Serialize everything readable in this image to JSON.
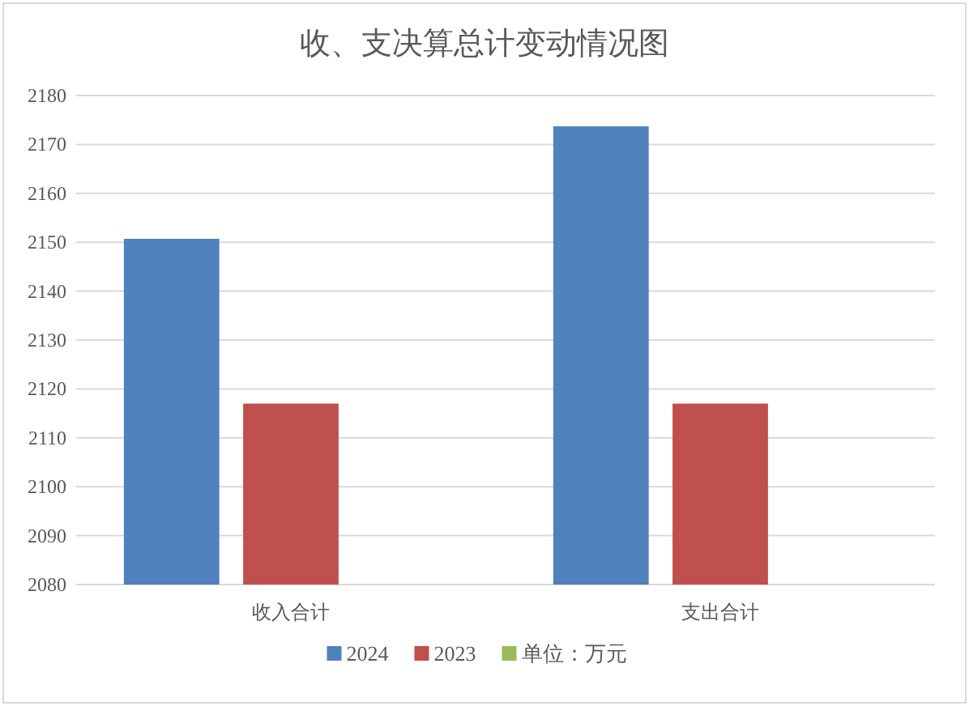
{
  "chart_data": {
    "type": "bar",
    "title": "收、支决算总计变动情况图",
    "categories": [
      "收入合计",
      "支出合计"
    ],
    "series": [
      {
        "name": "2024",
        "color": "#4f81bd",
        "values": [
          2150.7,
          2173.7
        ]
      },
      {
        "name": "2023",
        "color": "#c0504d",
        "values": [
          2117,
          2117
        ]
      },
      {
        "name": "单位：万元",
        "color": "#9bbb59",
        "values": [
          null,
          null
        ]
      }
    ],
    "ylim": [
      2080,
      2180
    ],
    "yticks": [
      2080,
      2090,
      2100,
      2110,
      2120,
      2130,
      2140,
      2150,
      2160,
      2170,
      2180
    ],
    "grid": "y",
    "legend": "bottom"
  }
}
